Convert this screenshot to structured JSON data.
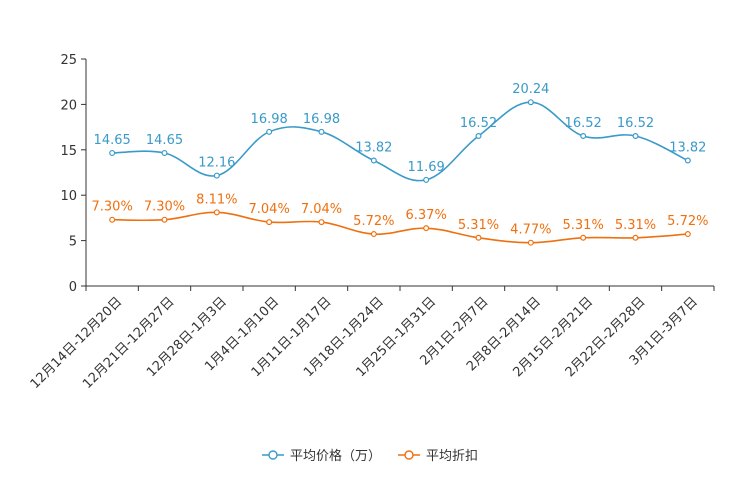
{
  "chart_data": {
    "type": "line",
    "title": "",
    "xlabel": "",
    "ylabel": "",
    "ylim": [
      0,
      25
    ],
    "yticks": [
      0,
      5,
      10,
      15,
      20,
      25
    ],
    "grid": false,
    "legend_position": "bottom-center",
    "categories": [
      "12月14日-12月20日",
      "12月21日-12月27日",
      "12月28日-1月3日",
      "1月4日-1月10日",
      "1月11日-1月17日",
      "1月18日-1月24日",
      "1月25日-1月31日",
      "2月1日-2月7日",
      "2月8日-2月14日",
      "2月15日-2月21日",
      "2月22日-2月28日",
      "3月1日-3月7日"
    ],
    "series": [
      {
        "name": "平均价格（万）",
        "color": "#3a9ac9",
        "values": [
          14.65,
          14.65,
          12.16,
          16.98,
          16.98,
          13.82,
          11.69,
          16.52,
          20.24,
          16.52,
          16.52,
          13.82
        ],
        "labels": [
          "14.65",
          "14.65",
          "12.16",
          "16.98",
          "16.98",
          "13.82",
          "11.69",
          "16.52",
          "20.24",
          "16.52",
          "16.52",
          "13.82"
        ]
      },
      {
        "name": "平均折扣",
        "color": "#f0700f",
        "values": [
          7.3,
          7.3,
          8.11,
          7.04,
          7.04,
          5.72,
          6.37,
          5.31,
          4.77,
          5.31,
          5.31,
          5.72
        ],
        "labels": [
          "7.30%",
          "7.30%",
          "8.11%",
          "7.04%",
          "7.04%",
          "5.72%",
          "6.37%",
          "5.31%",
          "4.77%",
          "5.31%",
          "5.31%",
          "5.72%"
        ]
      }
    ]
  }
}
